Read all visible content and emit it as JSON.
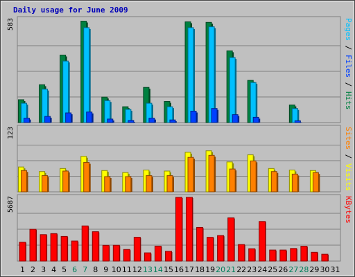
{
  "chart_data": {
    "type": "bar",
    "title": "Daily usage for June 2009",
    "days": [
      "1",
      "2",
      "3",
      "4",
      "5",
      "6",
      "7",
      "8",
      "9",
      "10",
      "11",
      "12",
      "13",
      "14",
      "15",
      "16",
      "17",
      "18",
      "19",
      "20",
      "21",
      "22",
      "23",
      "24",
      "25",
      "26",
      "27",
      "28",
      "29",
      "30",
      "31"
    ],
    "weekend_days": [
      "6",
      "7",
      "13",
      "14",
      "20",
      "21",
      "27",
      "28"
    ],
    "colors": {
      "hits": "#008040",
      "files": "#00c0ff",
      "pages": "#0040ff",
      "visits": "#ffff00",
      "sites": "#ff8000",
      "kbytes": "#ff0000",
      "weekend_label": "#00805c",
      "panel_bg": "#c0c0c0",
      "frame": "#808080"
    },
    "panels": [
      {
        "id": "hits-panel",
        "ymax_label": "583",
        "ymax": 583,
        "labels": [
          {
            "text": "Pages",
            "color": "#00c0ff"
          },
          {
            "text": " / ",
            "color": "#000000"
          },
          {
            "text": "Files",
            "color": "#0040ff"
          },
          {
            "text": " / ",
            "color": "#000000"
          },
          {
            "text": "Hits",
            "color": "#008040"
          }
        ],
        "series": [
          {
            "name": "Hits",
            "color": "#008040",
            "values": [
              130,
              0,
              215,
              0,
              384,
              0,
              577,
              0,
              145,
              0,
              90,
              0,
              200,
              0,
              120,
              0,
              573,
              0,
              570,
              0,
              408,
              0,
              240,
              0,
              0,
              0,
              100,
              0,
              0,
              0,
              0
            ]
          },
          {
            "name": "Files",
            "color": "#00c0ff",
            "values": [
              110,
              0,
              190,
              0,
              350,
              0,
              540,
              0,
              125,
              0,
              75,
              0,
              110,
              0,
              90,
              0,
              540,
              0,
              545,
              0,
              370,
              0,
              228,
              0,
              0,
              0,
              80,
              0,
              0,
              0,
              0
            ]
          },
          {
            "name": "Pages",
            "color": "#0040ff",
            "values": [
              25,
              0,
              35,
              0,
              55,
              0,
              60,
              0,
              20,
              0,
              12,
              0,
              25,
              0,
              15,
              0,
              65,
              0,
              80,
              0,
              45,
              0,
              30,
              0,
              0,
              0,
              10,
              0,
              0,
              0,
              0
            ]
          }
        ]
      },
      {
        "id": "visits-panel",
        "ymax_label": "123",
        "ymax": 123,
        "labels": [
          {
            "text": "Sites",
            "color": "#ff8000"
          },
          {
            "text": " / ",
            "color": "#000000"
          },
          {
            "text": "Visits",
            "color": "#ffff00"
          }
        ],
        "series": [
          {
            "name": "Visits",
            "color": "#ffff00",
            "values": [
              49,
              0,
              40,
              0,
              46,
              0,
              70,
              0,
              42,
              0,
              38,
              0,
              43,
              0,
              41,
              0,
              78,
              0,
              81,
              0,
              59,
              0,
              73,
              0,
              46,
              0,
              43,
              0,
              42,
              0,
              0
            ]
          },
          {
            "name": "Sites",
            "color": "#ff8000",
            "values": [
              42,
              0,
              32,
              0,
              41,
              0,
              58,
              0,
              30,
              0,
              30,
              0,
              32,
              0,
              32,
              0,
              68,
              0,
              72,
              0,
              45,
              0,
              61,
              0,
              40,
              0,
              35,
              0,
              38,
              0,
              0
            ]
          }
        ]
      },
      {
        "id": "kbytes-panel",
        "ymax_label": "5687",
        "ymax": 5687,
        "labels": [
          {
            "text": "KBytes",
            "color": "#ff0000"
          }
        ],
        "series": [
          {
            "name": "KBytes",
            "color": "#ff0000",
            "values": [
              1685,
              2836,
              2361,
              2451,
              2201,
              1790,
              3138,
              2622,
              1403,
              1409,
              1034,
              2126,
              735,
              1334,
              869,
              5687,
              5687,
              3002,
              2121,
              2279,
              3856,
              1481,
              1103,
              3535,
              985,
              985,
              1123,
              1321,
              785,
              611,
              0
            ]
          }
        ]
      }
    ]
  }
}
